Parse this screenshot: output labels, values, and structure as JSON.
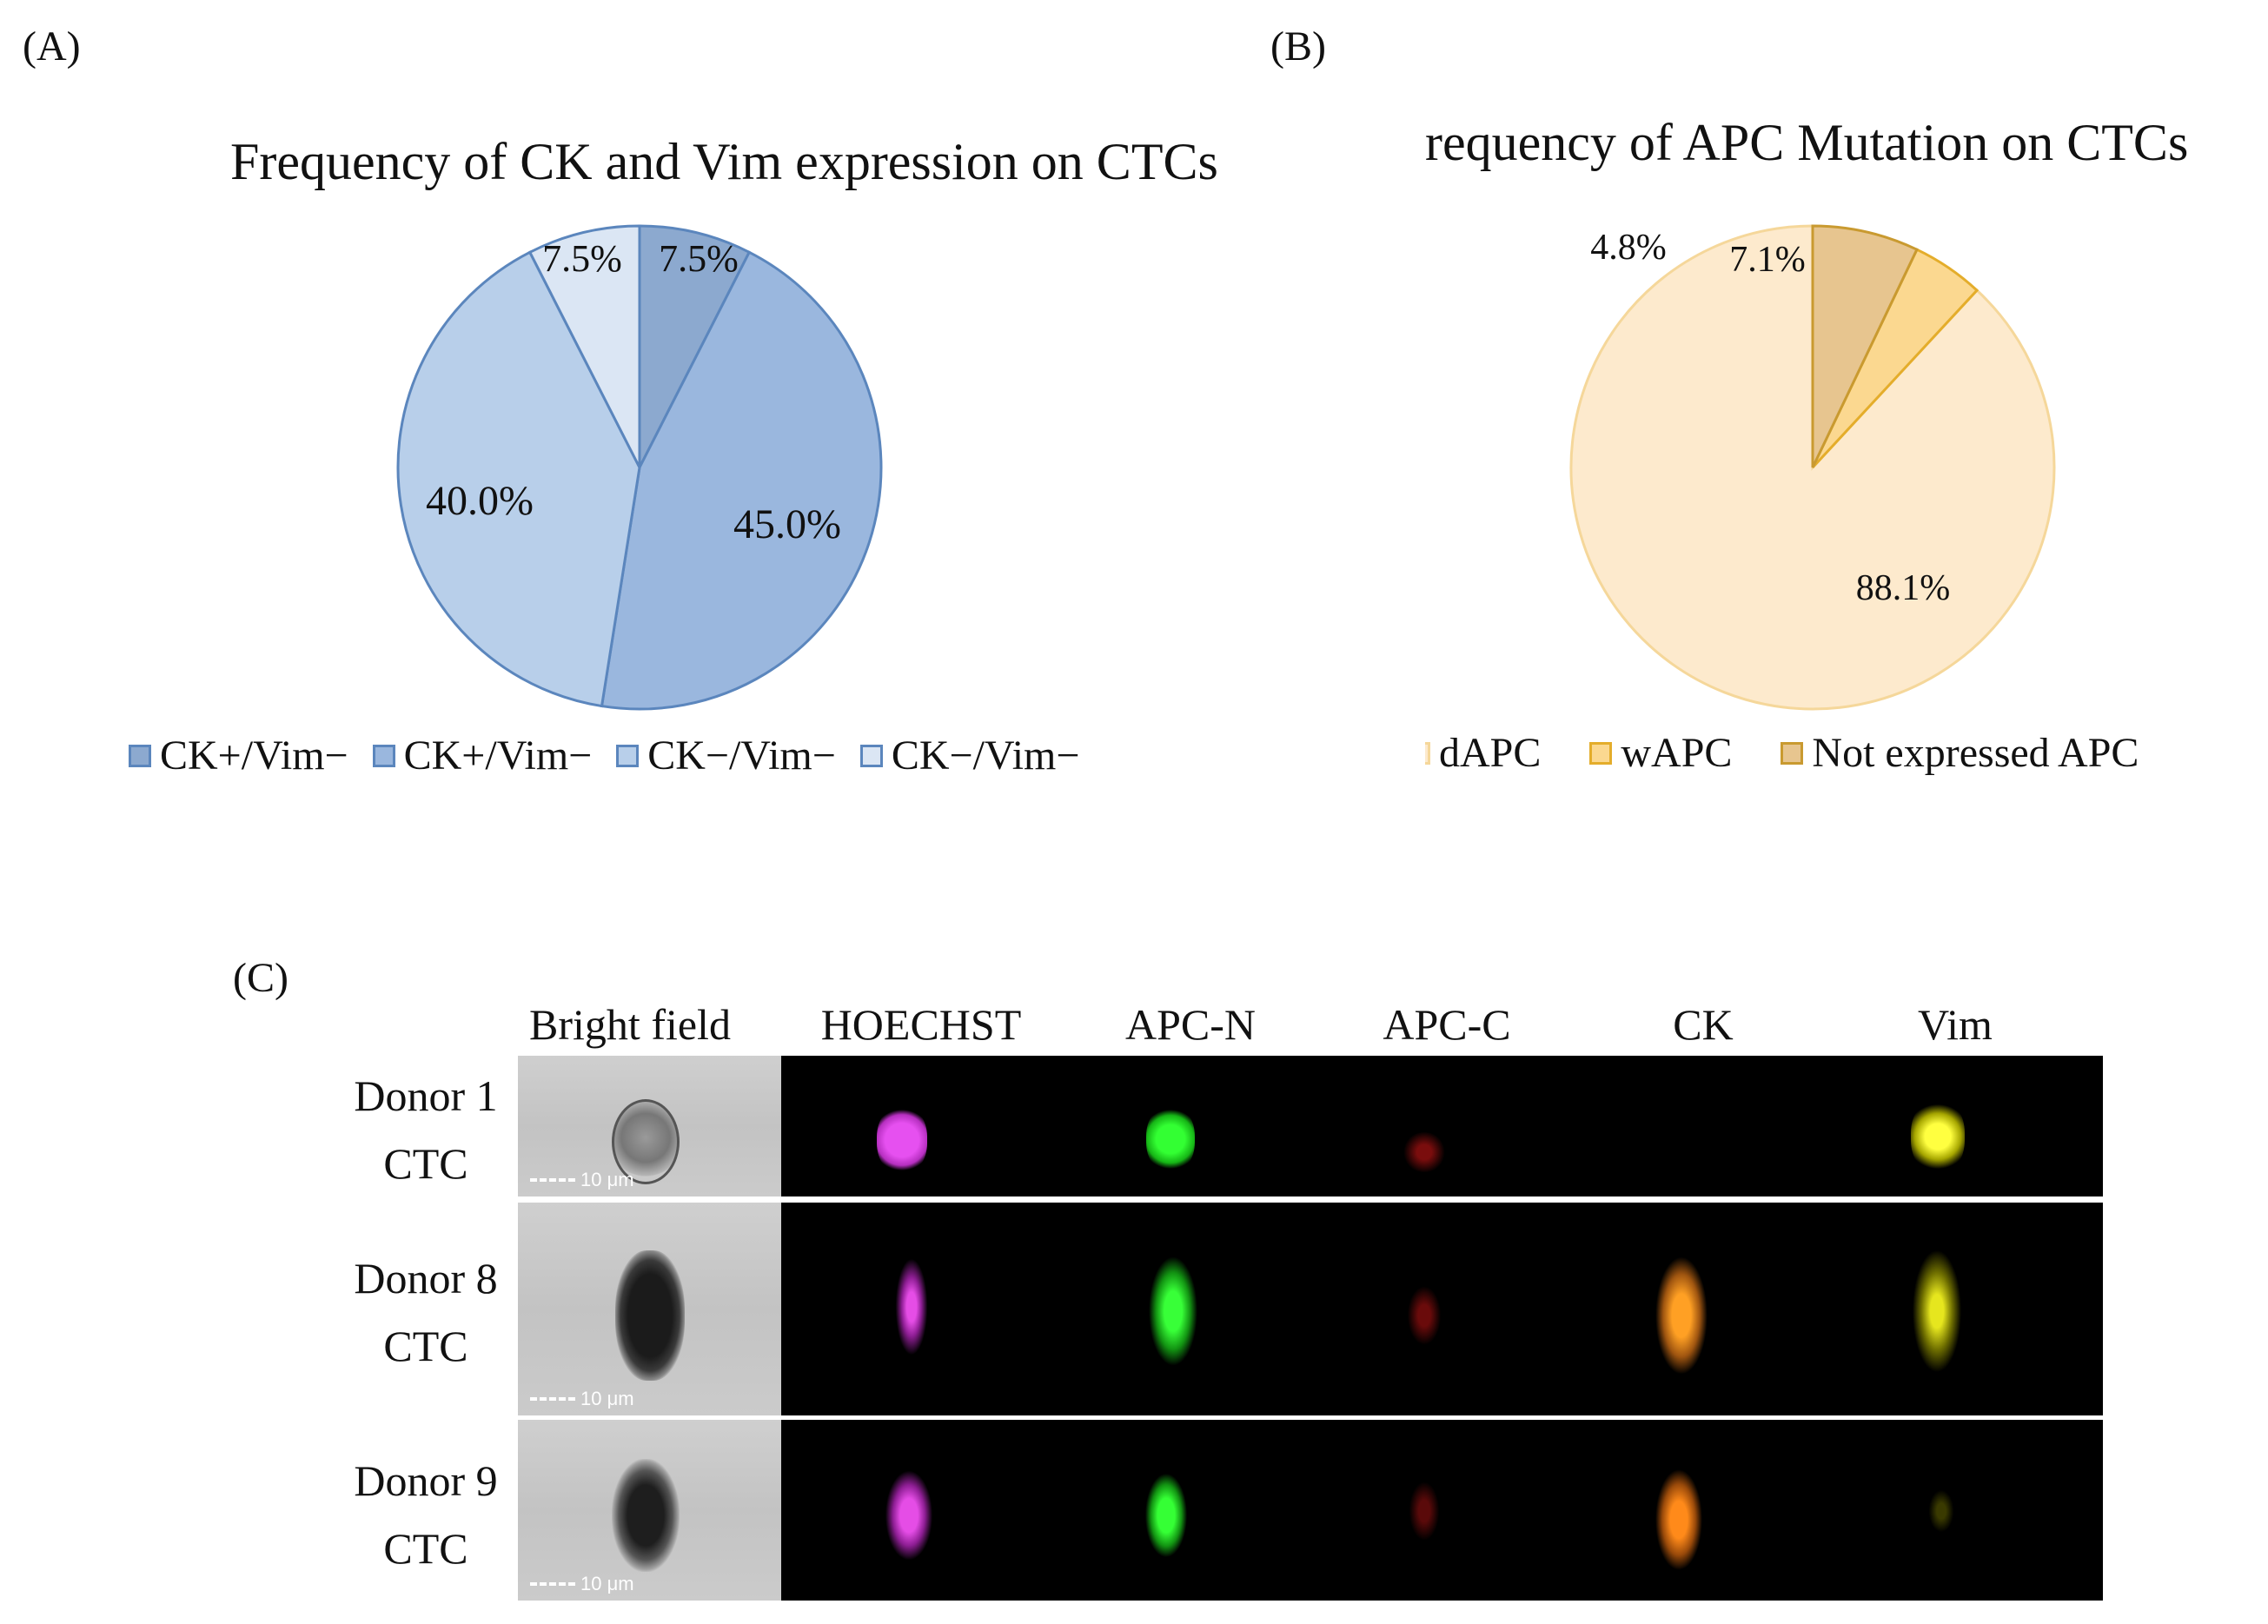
{
  "panels": {
    "a": "(A)",
    "b": "(B)",
    "c": "(C)"
  },
  "chart_data": [
    {
      "type": "pie",
      "title": "Frequency of CK and Vim expression on CTCs",
      "categories": [
        "CK+/Vim−",
        "CK+/Vim−",
        "CK−/Vim−",
        "CK−/Vim−"
      ],
      "values": [
        7.5,
        45.0,
        40.0,
        7.5
      ],
      "labels": [
        "7.5%",
        "45.0%",
        "40.0%",
        "7.5%"
      ],
      "colors": [
        "#8ca9cf",
        "#9ab7de",
        "#b8cfea",
        "#dbe6f4"
      ],
      "edge_color": "#5b86bd",
      "legend_position": "bottom"
    },
    {
      "type": "pie",
      "title": "requency of APC Mutation on CTCs",
      "categories": [
        "dAPC",
        "wAPC",
        "Not expressed APC"
      ],
      "values": [
        88.1,
        4.8,
        7.1
      ],
      "labels": [
        "88.1%",
        "4.8%",
        "7.1%"
      ],
      "colors": [
        "#fdeacd",
        "#fbd890",
        "#e7c58f"
      ],
      "edge_colors": [
        "#f5d79a",
        "#e4ad2b",
        "#c99a30"
      ],
      "legend_position": "bottom"
    }
  ],
  "microscopy": {
    "columns": [
      "Bright field",
      "HOECHST",
      "APC-N",
      "APC-C",
      "CK",
      "Vim"
    ],
    "rows": [
      {
        "label1": "Donor 1",
        "label2": "CTC",
        "scale": "10 μm"
      },
      {
        "label1": "Donor 8",
        "label2": "CTC",
        "scale": "10 μm"
      },
      {
        "label1": "Donor 9",
        "label2": "CTC",
        "scale": "10 μm"
      }
    ]
  }
}
